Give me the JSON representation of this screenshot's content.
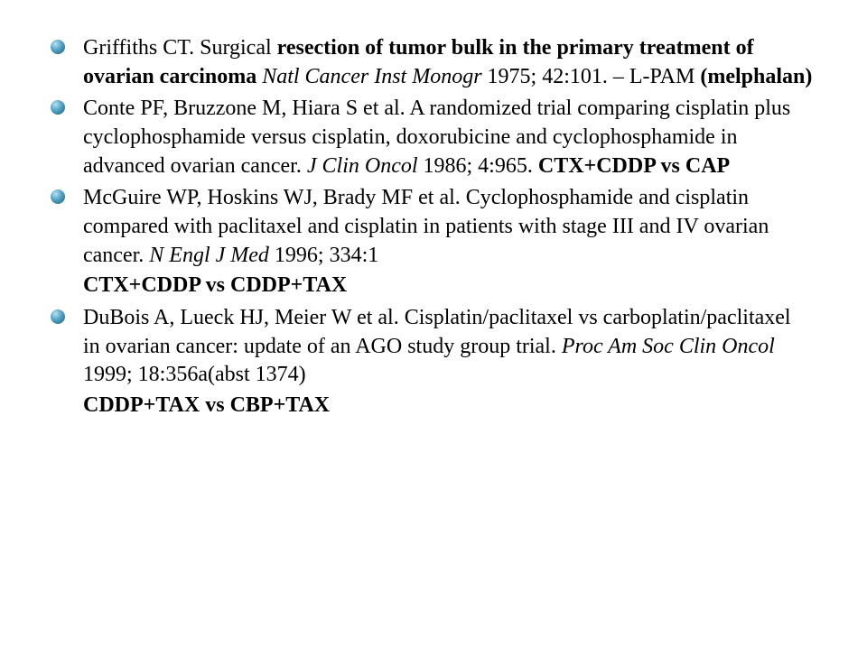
{
  "bullet_color": "#2a7ea0",
  "text_color": "#000000",
  "background": "#ffffff",
  "font_size": 24,
  "refs": [
    {
      "parts": [
        {
          "text": "Griffiths CT. Surgical ",
          "cls": "ref-normal"
        },
        {
          "text": "resection of tumor bulk in the primary treatment of ovarian carcinoma ",
          "cls": "ref-bold"
        },
        {
          "text": "Natl Cancer Inst Monogr",
          "cls": "ref-italic"
        },
        {
          "text": " 1975; 42:101. – L-PAM ",
          "cls": "ref-normal"
        },
        {
          "text": "(melphalan)",
          "cls": "ref-bold"
        }
      ]
    },
    {
      "parts": [
        {
          "text": "Conte PF, Bruzzone M, Hiara S et al. A randomized trial comparing cisplatin plus cyclophosphamide versus cisplatin, doxorubicine and cyclophosphamide in advanced ovarian cancer. ",
          "cls": "ref-normal"
        },
        {
          "text": "J Clin Oncol",
          "cls": "ref-italic"
        },
        {
          "text": " 1986; 4:965. ",
          "cls": "ref-normal"
        },
        {
          "text": "CTX+CDDP vs CAP",
          "cls": "ref-bold"
        }
      ]
    },
    {
      "parts": [
        {
          "text": "McGuire WP, Hoskins WJ, Brady MF et al. Cyclophosphamide and cisplatin compared with paclitaxel and cisplatin in patients with stage III and IV ovarian cancer. ",
          "cls": "ref-normal"
        },
        {
          "text": "N Engl  J Med",
          "cls": "ref-italic"
        },
        {
          "text": " 1996; 334:1",
          "cls": "ref-normal"
        }
      ],
      "tail": {
        "text": "CTX+CDDP vs CDDP+TAX",
        "cls": "ref-bold"
      }
    },
    {
      "parts": [
        {
          "text": "DuBois A, Lueck HJ, Meier W et al. Cisplatin/paclitaxel vs carboplatin/paclitaxel in ovarian cancer: update of an AGO study group trial. ",
          "cls": "ref-normal"
        },
        {
          "text": "Proc Am Soc Clin Oncol ",
          "cls": "ref-italic"
        },
        {
          "text": "1999; 18:356a(abst 1374)",
          "cls": "ref-normal"
        }
      ],
      "tail": {
        "text": "CDDP+TAX vs CBP+TAX",
        "cls": "ref-bold"
      }
    }
  ]
}
